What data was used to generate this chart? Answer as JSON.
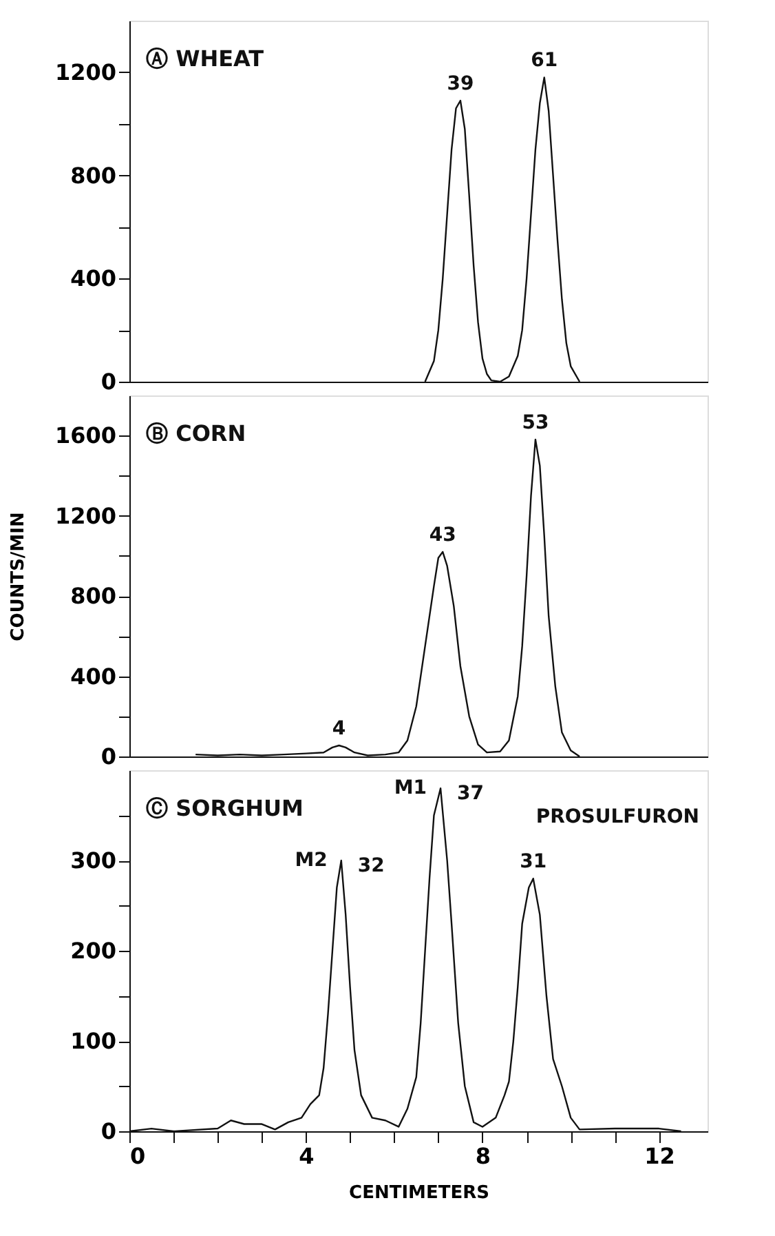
{
  "chart_data": [
    {
      "type": "line",
      "color": "#111111",
      "xlim": [
        0,
        13.1
      ],
      "tick_labels": "y",
      "ylim": [
        0,
        1400
      ],
      "yticks": [
        0,
        {
          "value": 200,
          "label": null
        },
        400,
        {
          "value": 600,
          "label": null
        },
        800,
        {
          "value": 1000,
          "label": null
        },
        1200
      ],
      "annotations": [
        "Ⓐ WHEAT",
        {
          "text": "39",
          "x": 7.5,
          "y": 1090
        },
        {
          "text": "61",
          "x": 9.4,
          "y": 1180
        }
      ],
      "x": [
        6.7,
        6.9,
        7.0,
        7.1,
        7.2,
        7.3,
        7.4,
        7.5,
        7.6,
        7.7,
        7.8,
        7.9,
        8.0,
        8.1,
        8.2,
        8.4,
        8.6,
        8.8,
        8.9,
        9.0,
        9.1,
        9.2,
        9.3,
        9.4,
        9.5,
        9.6,
        9.7,
        9.8,
        9.9,
        10.0,
        10.2
      ],
      "values": [
        0,
        80,
        200,
        400,
        650,
        900,
        1060,
        1090,
        980,
        720,
        450,
        230,
        90,
        30,
        5,
        0,
        20,
        100,
        200,
        400,
        650,
        900,
        1080,
        1180,
        1050,
        800,
        550,
        320,
        150,
        60,
        0
      ]
    },
    {
      "type": "line",
      "color": "#111111",
      "xlim": [
        0,
        13.1
      ],
      "tick_labels": "y",
      "ylim": [
        0,
        1800
      ],
      "yticks": [
        0,
        {
          "value": 200,
          "label": null
        },
        400,
        {
          "value": 600,
          "label": null
        },
        800,
        {
          "value": 1000,
          "label": null
        },
        1200,
        {
          "value": 1400,
          "label": null
        },
        1600
      ],
      "ylabel": "COUNTS/MIN",
      "annotations": [
        "Ⓑ CORN",
        {
          "text": "4",
          "x": 4.75,
          "y": 55
        },
        {
          "text": "43",
          "x": 7.1,
          "y": 1020
        },
        {
          "text": "53",
          "x": 9.2,
          "y": 1580
        }
      ],
      "x": [
        1.5,
        2.0,
        2.5,
        3.0,
        3.5,
        4.0,
        4.4,
        4.6,
        4.75,
        4.9,
        5.1,
        5.4,
        5.8,
        6.1,
        6.3,
        6.5,
        6.7,
        6.9,
        7.0,
        7.1,
        7.2,
        7.35,
        7.5,
        7.7,
        7.9,
        8.1,
        8.4,
        8.6,
        8.8,
        8.9,
        9.0,
        9.1,
        9.2,
        9.3,
        9.4,
        9.5,
        9.65,
        9.8,
        10.0,
        10.2
      ],
      "values": [
        10,
        5,
        10,
        5,
        10,
        15,
        20,
        45,
        55,
        45,
        20,
        5,
        10,
        20,
        80,
        250,
        550,
        850,
        990,
        1020,
        950,
        750,
        450,
        200,
        60,
        20,
        25,
        80,
        300,
        550,
        900,
        1300,
        1580,
        1450,
        1100,
        700,
        350,
        120,
        30,
        0
      ]
    },
    {
      "type": "line",
      "color": "#111111",
      "xlim": [
        0,
        13.1
      ],
      "xticks": [
        0,
        {
          "value": 1,
          "label": null
        },
        {
          "value": 2,
          "label": null
        },
        {
          "value": 3,
          "label": null
        },
        4,
        {
          "value": 5,
          "label": null
        },
        {
          "value": 6,
          "label": null
        },
        {
          "value": 7,
          "label": null
        },
        8,
        {
          "value": 9,
          "label": null
        },
        {
          "value": 10,
          "label": null
        },
        {
          "value": 11,
          "label": null
        },
        12
      ],
      "ylim": [
        0,
        400
      ],
      "yticks": [
        0,
        {
          "value": 50,
          "label": null
        },
        100,
        {
          "value": 150,
          "label": null
        },
        200,
        {
          "value": 250,
          "label": null
        },
        300,
        {
          "value": 350,
          "label": null
        }
      ],
      "xlabel": "CENTIMETERS",
      "annotations": [
        "Ⓒ SORGHUM",
        "PROSULFURON",
        {
          "text": "M2",
          "x": 4.8,
          "y": 300
        },
        {
          "text": "32",
          "x": 4.8,
          "y": 300
        },
        {
          "text": "M1",
          "x": 7.05,
          "y": 380
        },
        {
          "text": "37",
          "x": 7.05,
          "y": 380
        },
        {
          "text": "31",
          "x": 9.15,
          "y": 280
        }
      ],
      "x": [
        0,
        0.5,
        1.0,
        2.0,
        2.3,
        2.6,
        3.0,
        3.3,
        3.6,
        3.9,
        4.1,
        4.3,
        4.4,
        4.5,
        4.6,
        4.7,
        4.8,
        4.9,
        5.0,
        5.1,
        5.25,
        5.5,
        5.8,
        6.1,
        6.3,
        6.5,
        6.6,
        6.7,
        6.8,
        6.9,
        7.05,
        7.2,
        7.3,
        7.45,
        7.6,
        7.8,
        8.0,
        8.3,
        8.5,
        8.6,
        8.7,
        8.8,
        8.9,
        9.05,
        9.15,
        9.3,
        9.45,
        9.6,
        9.8,
        10.0,
        10.2,
        11,
        12,
        12.5
      ],
      "values": [
        0,
        3,
        0,
        3,
        12,
        8,
        8,
        2,
        10,
        15,
        30,
        40,
        70,
        130,
        200,
        270,
        300,
        240,
        160,
        90,
        40,
        15,
        12,
        5,
        25,
        60,
        120,
        200,
        280,
        350,
        380,
        300,
        230,
        120,
        50,
        10,
        5,
        15,
        40,
        55,
        100,
        160,
        230,
        270,
        280,
        240,
        150,
        80,
        50,
        15,
        2,
        3,
        3,
        0
      ]
    }
  ]
}
